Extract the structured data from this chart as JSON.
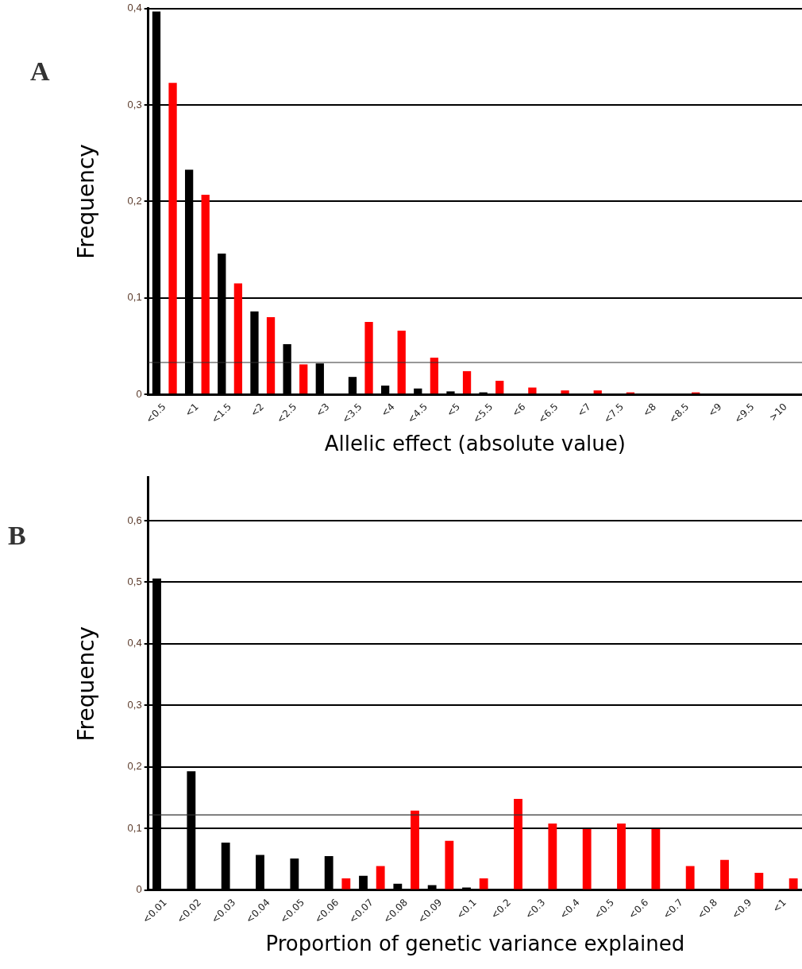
{
  "chart_data": [
    {
      "type": "bar",
      "xlabel": "Allelic effect (absolute value)",
      "ylabel": "Frequency",
      "annotations": [
        "A"
      ],
      "categories": [
        "<0.5",
        "<1",
        "<1.5",
        "<2",
        "<2.5",
        "<3",
        "<3.5",
        "<4",
        "<4.5",
        "<5",
        "<5.5",
        "<6",
        "<6.5",
        "<7",
        "<7.5",
        "<8",
        "<8.5",
        "<9",
        "<9.5",
        ">10"
      ],
      "series": [
        {
          "color": "#000000",
          "values": [
            0.397,
            0.233,
            0.146,
            0.086,
            0.052,
            0.032,
            0.018,
            0.009,
            0.006,
            0.003,
            0.002,
            null,
            0,
            0,
            0,
            0,
            0,
            0,
            0,
            0
          ]
        },
        {
          "color": "#ff0000",
          "values": [
            0.323,
            0.207,
            0.115,
            0.08,
            0.031,
            0,
            0.075,
            0.066,
            0.038,
            0.024,
            0.014,
            0.007,
            0.004,
            0.004,
            0.002,
            0,
            0.002,
            0,
            0,
            0
          ]
        }
      ],
      "ylim": [
        0,
        0.4
      ],
      "yticks": [
        {
          "value": 0,
          "label": "0"
        },
        {
          "value": 0.1,
          "label": "0,1"
        },
        {
          "value": 0.2,
          "label": "0,2"
        },
        {
          "value": 0.3,
          "label": "0,3"
        },
        {
          "value": 0.4,
          "label": "0,4"
        }
      ],
      "grid": "y",
      "ref_lines": [
        {
          "axis": "y",
          "value": 0.033,
          "color": "#333333"
        }
      ]
    },
    {
      "type": "bar",
      "xlabel": "Proportion of genetic variance explained",
      "ylabel": "Frequency",
      "annotations": [
        "B"
      ],
      "categories": [
        "<0.01",
        "<0.02",
        "<0.03",
        "<0.04",
        "<0.05",
        "<0.06",
        "<0.07",
        "<0.08",
        "<0.09",
        "<0.1",
        "<0.2",
        "<0.3",
        "<0.4",
        "<0.5",
        "<0.6",
        "<0.7",
        "<0.8",
        "<0.9",
        "<1"
      ],
      "series": [
        {
          "color": "#000000",
          "values": [
            0.506,
            0.193,
            0.077,
            0.057,
            0.051,
            0.055,
            0.023,
            0.01,
            0.008,
            0.004,
            0,
            0,
            0,
            0,
            0,
            0,
            0,
            0,
            0
          ]
        },
        {
          "color": "#ff0000",
          "values": [
            0,
            0,
            0,
            0,
            0,
            0.019,
            0.039,
            0.129,
            0.08,
            0.019,
            0.148,
            0.108,
            0.099,
            0.108,
            0.099,
            0.039,
            0.049,
            0.028,
            0.019
          ]
        }
      ],
      "ylim": [
        0,
        0.67
      ],
      "yticks": [
        {
          "value": 0,
          "label": "0"
        },
        {
          "value": 0.1,
          "label": "0,1"
        },
        {
          "value": 0.2,
          "label": "0,2"
        },
        {
          "value": 0.3,
          "label": "0,3"
        },
        {
          "value": 0.4,
          "label": "0,4"
        },
        {
          "value": 0.5,
          "label": "0,5"
        },
        {
          "value": 0.6,
          "label": "0,6"
        }
      ],
      "grid": "y",
      "ref_lines": [
        {
          "axis": "y",
          "value": 0.122,
          "color": "#333333"
        }
      ]
    }
  ]
}
